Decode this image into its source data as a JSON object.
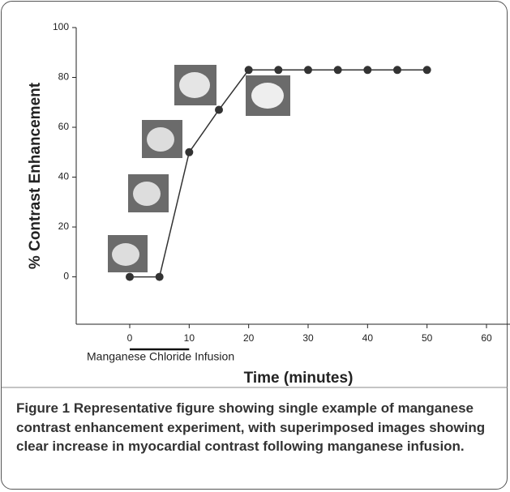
{
  "chart_data": {
    "type": "line",
    "xlabel": "Time (minutes)",
    "ylabel": "% Contrast Enhancement",
    "x": [
      0,
      5,
      10,
      15,
      20,
      25,
      30,
      35,
      40,
      45,
      50
    ],
    "series": [
      {
        "color": "#333333",
        "values": [
          0,
          0,
          50,
          67,
          83,
          83,
          83,
          83,
          83,
          83,
          83
        ]
      }
    ],
    "xlim": [
      -9,
      63
    ],
    "ylim": [
      -19,
      100
    ],
    "xticks": [
      0,
      10,
      20,
      30,
      40,
      50,
      60
    ],
    "yticks": [
      0,
      20,
      40,
      60,
      80,
      100
    ],
    "infusion": {
      "label": "Manganese Chloride Infusion",
      "start": 0,
      "end": 10
    }
  },
  "caption": {
    "label": "Figure 1",
    "text": "Representative figure showing single example of manganese contrast enhancement experiment, with superimposed images showing clear increase in myocardial contrast following manganese infusion."
  }
}
